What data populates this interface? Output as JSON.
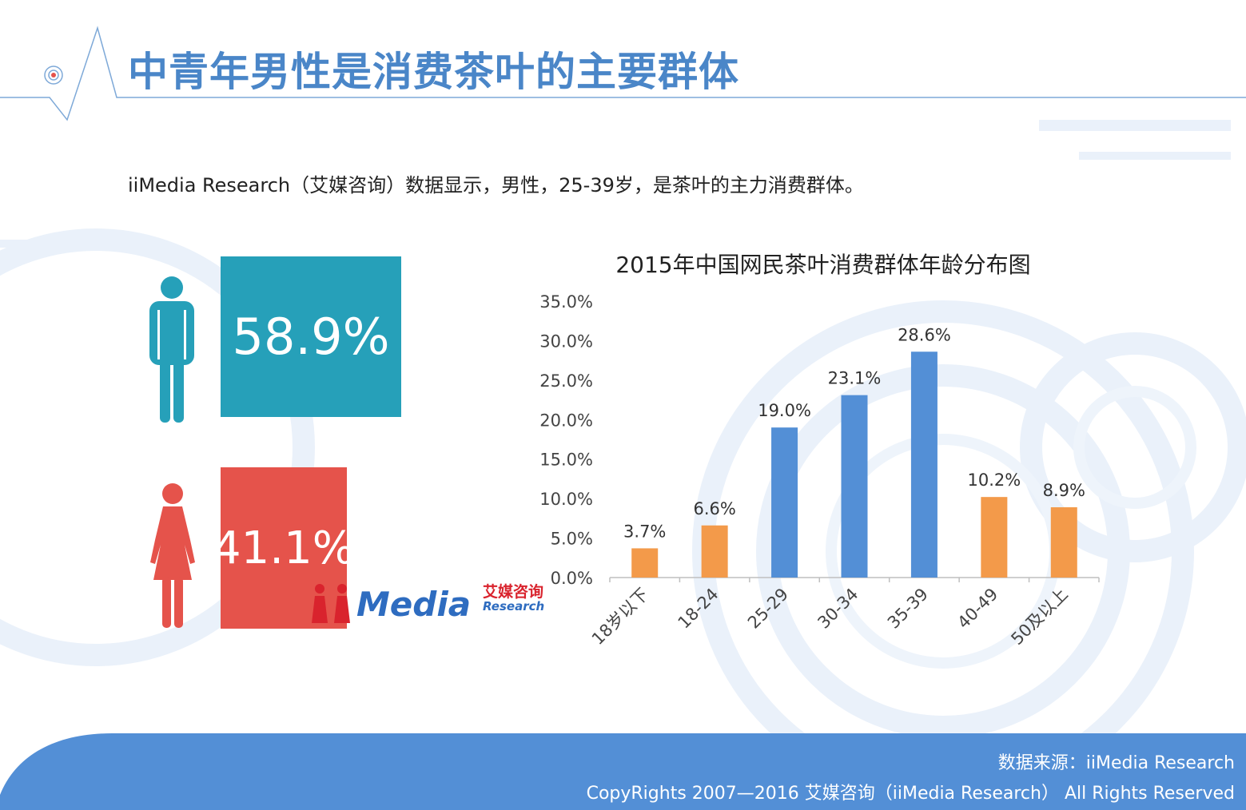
{
  "title": "中青年男性是消费茶叶的主要群体",
  "subtitle": "iiMedia Research（艾媒咨询）数据显示，男性，25-39岁，是茶叶的主力消费群体。",
  "gender": {
    "male": {
      "value": "58.9%",
      "icon": "male-person-icon",
      "color": "#26a0b9"
    },
    "female": {
      "value": "41.1%",
      "icon": "female-person-icon",
      "color": "#e5534b"
    }
  },
  "logo": {
    "brand": "Media",
    "cn": "艾媒咨询",
    "en": "Research"
  },
  "chart_data": {
    "type": "bar",
    "title": "2015年中国网民茶叶消费群体年龄分布图",
    "categories": [
      "18岁以下",
      "18-24",
      "25-29",
      "30-34",
      "35-39",
      "40-49",
      "50及以上"
    ],
    "values": [
      3.7,
      6.6,
      19.0,
      23.1,
      28.6,
      10.2,
      8.9
    ],
    "value_labels": [
      "3.7%",
      "6.6%",
      "19.0%",
      "23.1%",
      "28.6%",
      "10.2%",
      "8.9%"
    ],
    "bar_colors": [
      "#f39a4a",
      "#f39a4a",
      "#538fd6",
      "#538fd6",
      "#538fd6",
      "#f39a4a",
      "#f39a4a"
    ],
    "ylim": [
      0,
      35
    ],
    "yticks": [
      "0.0%",
      "5.0%",
      "10.0%",
      "15.0%",
      "20.0%",
      "25.0%",
      "30.0%",
      "35.0%"
    ],
    "xlabel": "",
    "ylabel": "",
    "grid": false
  },
  "footer": {
    "source": "数据来源：iiMedia Research",
    "copyright": "CopyRights 2007—2016 艾媒咨询（iiMedia Research） All Rights Reserved"
  },
  "colors": {
    "accent": "#4a86c8",
    "footer_bg": "#538fd6"
  }
}
